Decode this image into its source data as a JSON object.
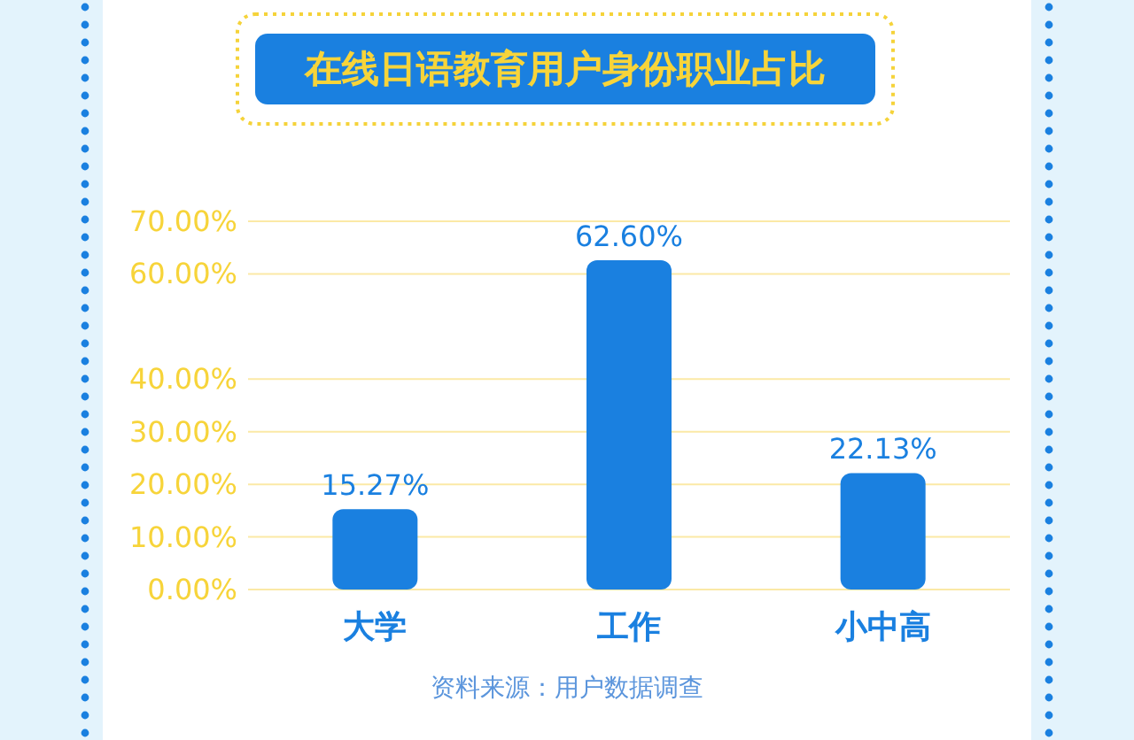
{
  "chart_data": {
    "type": "bar",
    "title": "在线日语教育用户身份职业占比",
    "categories": [
      "大学",
      "工作",
      "小中高"
    ],
    "values": [
      15.27,
      62.6,
      22.13
    ],
    "value_labels": [
      "15.27%",
      "62.60%",
      "22.13%"
    ],
    "color": "#1a80e0",
    "ylim": [
      0,
      70
    ],
    "yticks": [
      {
        "value": 0,
        "label": "0.00%"
      },
      {
        "value": 10,
        "label": "10.00%"
      },
      {
        "value": 20,
        "label": "20.00%"
      },
      {
        "value": 30,
        "label": "30.00%"
      },
      {
        "value": 40,
        "label": "40.00%"
      },
      {
        "value": 60,
        "label": "60.00%"
      },
      {
        "value": 70,
        "label": "70.00%"
      }
    ],
    "grid": "y",
    "annotations": [
      "资料来源：用户数据调查"
    ]
  }
}
